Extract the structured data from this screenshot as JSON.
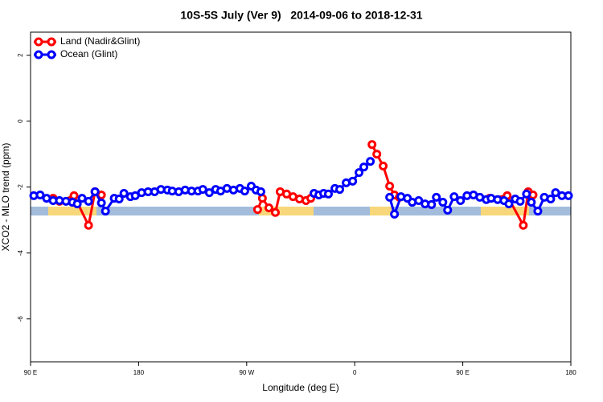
{
  "chart_data": {
    "type": "line",
    "title": "10S-5S July (Ver 9)   2014-09-06 to 2018-12-31",
    "x_label": "Longitude (deg E)",
    "y_label": "XCO2 - MLO trend (ppm)",
    "xlim": [
      90,
      540
    ],
    "ylim": [
      -7.3,
      2.7
    ],
    "xticks": [
      {
        "value": 90,
        "label": "90 E"
      },
      180,
      {
        "value": 270,
        "label": "90 W"
      },
      {
        "value": 360,
        "label": "0"
      },
      {
        "value": 450,
        "label": "90 E"
      },
      {
        "value": 540,
        "label": "180"
      }
    ],
    "yticks": [
      2,
      0,
      -2,
      -4,
      -6
    ],
    "legend": "top-left",
    "series": [
      {
        "name": "Land (Nadir&Glint)",
        "color": "#ff0000",
        "x": [
          108.8,
          114.1,
          126.2,
          138.3,
          143.7,
          149.0,
          null,
          279.1,
          283.1,
          288.5,
          293.9,
          297.9,
          303.3,
          308.6,
          314.0,
          319.4,
          323.4,
          null,
          374.4,
          378.4,
          383.7,
          389.1,
          393.1,
          397.2,
          null,
          472.3,
          487.0,
          500.4,
          504.5,
          508.5
        ],
        "values": [
          -2.34,
          -2.43,
          -2.26,
          -3.16,
          -2.14,
          -2.24,
          null,
          -2.68,
          -2.34,
          -2.63,
          -2.77,
          -2.14,
          -2.21,
          -2.29,
          -2.36,
          -2.41,
          -2.34,
          null,
          -0.71,
          -1.0,
          -1.36,
          -1.97,
          -2.24,
          -2.31,
          null,
          -2.34,
          -2.26,
          -3.16,
          -2.14,
          -2.24
        ]
      },
      {
        "name": "Ocean (Glint)",
        "color": "#0000ff",
        "x": [
          92.7,
          98.0,
          103.4,
          108.8,
          114.1,
          119.5,
          124.9,
          128.9,
          132.9,
          138.3,
          143.7,
          149.0,
          152.4,
          159.7,
          163.8,
          167.8,
          173.2,
          177.2,
          182.5,
          187.9,
          193.3,
          198.6,
          204.0,
          208.0,
          213.4,
          218.8,
          224.1,
          229.5,
          233.5,
          238.9,
          244.2,
          248.3,
          253.6,
          259.0,
          264.4,
          268.4,
          273.8,
          277.8,
          281.8,
          null,
          326.1,
          330.1,
          334.1,
          338.1,
          343.5,
          347.5,
          352.9,
          358.3,
          363.6,
          367.6,
          373.0,
          null,
          389.1,
          393.1,
          398.5,
          403.9,
          407.9,
          413.3,
          418.6,
          424.0,
          428.0,
          433.4,
          437.4,
          442.8,
          448.1,
          453.5,
          458.9,
          464.2,
          469.6,
          473.6,
          479.0,
          484.3,
          488.4,
          493.7,
          497.8,
          503.1,
          507.1,
          512.5,
          517.9,
          523.2,
          527.3,
          532.6,
          538.0
        ],
        "values": [
          -2.26,
          -2.24,
          -2.34,
          -2.41,
          -2.41,
          -2.43,
          -2.46,
          -2.51,
          -2.34,
          -2.43,
          -2.14,
          -2.48,
          -2.73,
          -2.34,
          -2.36,
          -2.19,
          -2.29,
          -2.26,
          -2.17,
          -2.14,
          -2.14,
          -2.07,
          -2.09,
          -2.12,
          -2.14,
          -2.09,
          -2.12,
          -2.12,
          -2.07,
          -2.17,
          -2.07,
          -2.12,
          -2.04,
          -2.09,
          -2.04,
          -2.12,
          -1.97,
          -2.09,
          -2.14,
          null,
          -2.19,
          -2.24,
          -2.19,
          -2.21,
          -2.04,
          -2.07,
          -1.87,
          -1.82,
          -1.56,
          -1.39,
          -1.22,
          null,
          -2.31,
          -2.82,
          -2.29,
          -2.34,
          -2.46,
          -2.41,
          -2.51,
          -2.53,
          -2.31,
          -2.46,
          -2.7,
          -2.29,
          -2.41,
          -2.26,
          -2.24,
          -2.31,
          -2.38,
          -2.34,
          -2.38,
          -2.41,
          -2.51,
          -2.36,
          -2.43,
          -2.21,
          -2.46,
          -2.73,
          -2.31,
          -2.36,
          -2.17,
          -2.26,
          -2.26
        ]
      }
    ]
  }
}
